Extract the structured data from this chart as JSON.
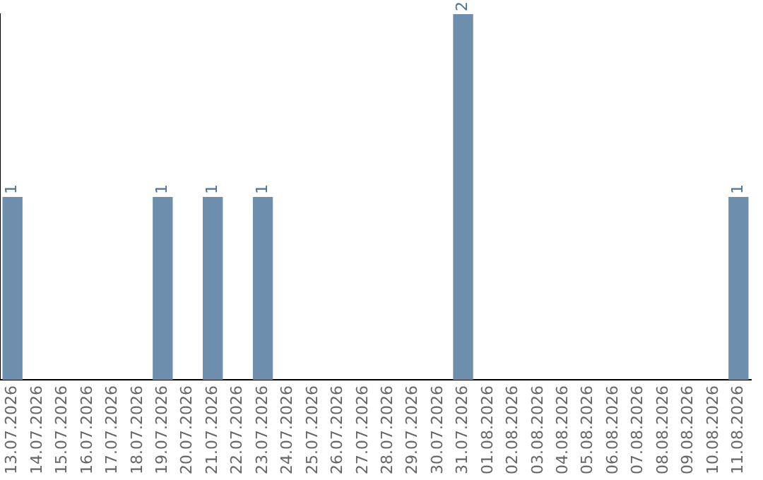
{
  "chart_data": {
    "type": "bar",
    "categories": [
      "13.07.2026",
      "14.07.2026",
      "15.07.2026",
      "16.07.2026",
      "17.07.2026",
      "18.07.2026",
      "19.07.2026",
      "20.07.2026",
      "21.07.2026",
      "22.07.2026",
      "23.07.2026",
      "24.07.2026",
      "25.07.2026",
      "26.07.2026",
      "27.07.2026",
      "28.07.2026",
      "29.07.2026",
      "30.07.2026",
      "31.07.2026",
      "01.08.2026",
      "02.08.2026",
      "03.08.2026",
      "04.08.2026",
      "05.08.2026",
      "06.08.2026",
      "07.08.2026",
      "08.08.2026",
      "09.08.2026",
      "10.08.2026",
      "11.08.2026"
    ],
    "values": [
      1,
      0,
      0,
      0,
      0,
      0,
      1,
      0,
      1,
      0,
      1,
      0,
      0,
      0,
      0,
      0,
      0,
      0,
      2,
      0,
      0,
      0,
      0,
      0,
      0,
      0,
      0,
      0,
      0,
      1
    ],
    "value_labels": [
      "1",
      null,
      null,
      null,
      null,
      null,
      "1",
      null,
      "1",
      null,
      "1",
      null,
      null,
      null,
      null,
      null,
      null,
      null,
      "2",
      null,
      null,
      null,
      null,
      null,
      null,
      null,
      null,
      null,
      null,
      "1"
    ],
    "color": "#6d8fad",
    "grid": false,
    "legend": false,
    "tick_labels": "x"
  }
}
